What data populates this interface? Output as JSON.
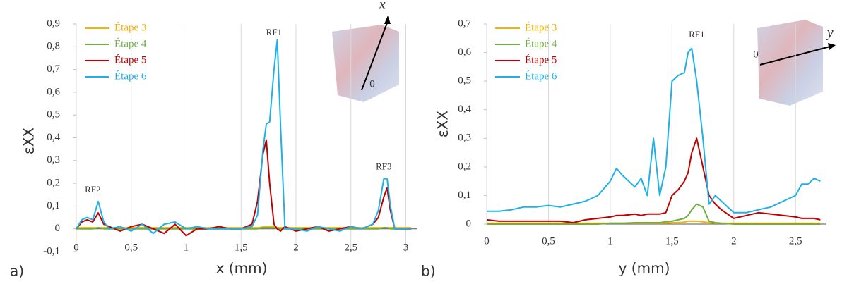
{
  "chart_data": [
    {
      "type": "line",
      "panel_label": "a)",
      "x_label": "x (mm)",
      "y_label": "εXX",
      "x": [
        0,
        0.05,
        0.1,
        0.15,
        0.2,
        0.25,
        0.3,
        0.4,
        0.5,
        0.6,
        0.7,
        0.8,
        0.9,
        1.0,
        1.1,
        1.2,
        1.3,
        1.4,
        1.5,
        1.6,
        1.65,
        1.7,
        1.73,
        1.76,
        1.8,
        1.83,
        1.86,
        1.9,
        2.0,
        2.1,
        2.2,
        2.3,
        2.4,
        2.5,
        2.6,
        2.7,
        2.75,
        2.8,
        2.83,
        2.86,
        2.9,
        3.0,
        3.05
      ],
      "series": [
        {
          "name": "Étape 3",
          "color": "#f5b400",
          "values": [
            0.005,
            0.005,
            0.005,
            0.005,
            0.005,
            0.005,
            0.005,
            0.005,
            0.005,
            0.005,
            0.005,
            0.005,
            0.005,
            0.005,
            0.005,
            0.005,
            0.005,
            0.005,
            0.005,
            0.005,
            0.005,
            0.008,
            0.01,
            0.01,
            0.01,
            0.005,
            0.005,
            0.005,
            0.005,
            0.005,
            0.005,
            0.005,
            0.005,
            0.005,
            0.005,
            0.005,
            0.005,
            0.005,
            0.005,
            0.005,
            0.005,
            0.005,
            0.005
          ]
        },
        {
          "name": "Étape 4",
          "color": "#70ad47",
          "values": [
            0,
            0,
            0,
            0,
            0.005,
            0,
            0,
            0,
            0,
            0,
            0,
            0,
            0,
            0,
            0,
            0,
            0,
            0,
            0,
            0,
            0,
            0.005,
            0.005,
            0.005,
            0.005,
            0,
            0,
            0,
            0,
            0,
            0,
            0,
            0,
            0,
            0,
            0,
            0,
            0.005,
            0.005,
            0,
            0,
            0,
            0
          ]
        },
        {
          "name": "Étape 5",
          "color": "#c00000",
          "values": [
            0,
            0.03,
            0.04,
            0.03,
            0.07,
            0.02,
            0.01,
            -0.01,
            0.01,
            0.02,
            0,
            -0.02,
            0.02,
            -0.03,
            0,
            0,
            0.01,
            0,
            0,
            0.02,
            0.12,
            0.33,
            0.39,
            0.2,
            0.02,
            0,
            -0.01,
            0.01,
            -0.01,
            0,
            0.01,
            -0.01,
            0,
            0.01,
            0,
            0.02,
            0.05,
            0.14,
            0.18,
            0.08,
            0,
            0,
            0
          ]
        },
        {
          "name": "Étape 6",
          "color": "#1fb0e8",
          "values": [
            0,
            0.04,
            0.05,
            0.04,
            0.12,
            0.03,
            0,
            0.01,
            -0.01,
            0.02,
            -0.02,
            0.02,
            0.03,
            0,
            0.01,
            0,
            0,
            0,
            0,
            0.01,
            0.06,
            0.35,
            0.46,
            0.47,
            0.7,
            0.83,
            0.45,
            0,
            0,
            -0.01,
            0.01,
            0,
            -0.01,
            0.01,
            0,
            0.02,
            0.08,
            0.22,
            0.22,
            0.1,
            0,
            0,
            0
          ]
        }
      ],
      "xlim": [
        0,
        3.1
      ],
      "ylim": [
        -0.1,
        0.9
      ],
      "xticks": [
        0,
        {
          "value": 0.5,
          "label": "0,5"
        },
        1,
        {
          "value": 1.5,
          "label": "1,5"
        },
        2,
        {
          "value": 2.5,
          "label": "2,5"
        },
        3
      ],
      "yticks": [
        {
          "value": -0.1,
          "label": "-0,1"
        },
        0,
        {
          "value": 0.1,
          "label": "0,1"
        },
        {
          "value": 0.2,
          "label": "0,2"
        },
        {
          "value": 0.3,
          "label": "0,3"
        },
        {
          "value": 0.4,
          "label": "0,4"
        },
        {
          "value": 0.5,
          "label": "0,5"
        },
        {
          "value": 0.6,
          "label": "0,6"
        },
        {
          "value": 0.7,
          "label": "0,7"
        },
        {
          "value": 0.8,
          "label": "0,8"
        },
        {
          "value": 0.9,
          "label": "0,9"
        }
      ],
      "grid": true,
      "legend": "upper left",
      "annotations": [
        {
          "text": "RF1",
          "x": 1.8,
          "y": 0.86
        },
        {
          "text": "RF2",
          "x": 0.15,
          "y": 0.17
        },
        {
          "text": "RF3",
          "x": 2.8,
          "y": 0.27
        }
      ],
      "inset_axis_label": "x⃗",
      "inset_origin_label": "0"
    },
    {
      "type": "line",
      "panel_label": "b)",
      "x_label": "y (mm)",
      "y_label": "εXX",
      "x": [
        0,
        0.1,
        0.2,
        0.3,
        0.4,
        0.5,
        0.6,
        0.7,
        0.8,
        0.9,
        1.0,
        1.05,
        1.1,
        1.2,
        1.25,
        1.3,
        1.35,
        1.4,
        1.45,
        1.5,
        1.55,
        1.6,
        1.63,
        1.66,
        1.7,
        1.75,
        1.8,
        1.85,
        1.9,
        2.0,
        2.1,
        2.2,
        2.3,
        2.4,
        2.5,
        2.55,
        2.6,
        2.65,
        2.7
      ],
      "series": [
        {
          "name": "Étape 3",
          "color": "#f5b400",
          "values": [
            0.003,
            0.003,
            0.003,
            0.003,
            0.003,
            0.003,
            0.003,
            0.003,
            0.003,
            0.003,
            0.003,
            0.003,
            0.003,
            0.003,
            0.003,
            0.003,
            0.003,
            0.003,
            0.003,
            0.005,
            0.005,
            0.007,
            0.01,
            0.01,
            0.01,
            0.008,
            0.005,
            0.003,
            0.003,
            0.003,
            0.003,
            0.003,
            0.003,
            0.003,
            0.003,
            0.003,
            0.003,
            0.003,
            0.003
          ]
        },
        {
          "name": "Étape 4",
          "color": "#70ad47",
          "values": [
            0,
            0,
            0,
            0,
            0,
            0,
            0,
            0,
            0,
            0,
            0.003,
            0.003,
            0.003,
            0.005,
            0.005,
            0.005,
            0.005,
            0.005,
            0.008,
            0.01,
            0.015,
            0.02,
            0.03,
            0.05,
            0.07,
            0.06,
            0.01,
            0.005,
            0.003,
            0,
            0,
            0,
            0,
            0,
            0,
            0,
            0,
            0,
            0
          ]
        },
        {
          "name": "Étape 5",
          "color": "#c00000",
          "values": [
            0.015,
            0.01,
            0.01,
            0.01,
            0.01,
            0.01,
            0.01,
            0.005,
            0.015,
            0.02,
            0.025,
            0.03,
            0.03,
            0.035,
            0.03,
            0.035,
            0.035,
            0.035,
            0.04,
            0.1,
            0.12,
            0.15,
            0.18,
            0.25,
            0.3,
            0.2,
            0.1,
            0.07,
            0.05,
            0.02,
            0.03,
            0.04,
            0.035,
            0.03,
            0.025,
            0.02,
            0.02,
            0.02,
            0.015
          ]
        },
        {
          "name": "Étape 6",
          "color": "#1fb0e8",
          "values": [
            0.045,
            0.045,
            0.05,
            0.06,
            0.06,
            0.065,
            0.06,
            0.07,
            0.08,
            0.1,
            0.15,
            0.195,
            0.17,
            0.13,
            0.16,
            0.1,
            0.3,
            0.1,
            0.2,
            0.5,
            0.52,
            0.53,
            0.6,
            0.615,
            0.5,
            0.3,
            0.07,
            0.1,
            0.08,
            0.04,
            0.04,
            0.05,
            0.06,
            0.08,
            0.1,
            0.14,
            0.14,
            0.16,
            0.15
          ]
        }
      ],
      "xlim": [
        0,
        2.75
      ],
      "ylim": [
        0,
        0.7
      ],
      "xticks": [
        0,
        {
          "value": 0.5,
          "label": "0,5"
        },
        1,
        {
          "value": 1.5,
          "label": "1,5"
        },
        2,
        {
          "value": 2.5,
          "label": "2,5"
        }
      ],
      "yticks": [
        0,
        {
          "value": 0.1,
          "label": "0,1"
        },
        {
          "value": 0.2,
          "label": "0,2"
        },
        {
          "value": 0.3,
          "label": "0,3"
        },
        {
          "value": 0.4,
          "label": "0,4"
        },
        {
          "value": 0.5,
          "label": "0,5"
        },
        {
          "value": 0.6,
          "label": "0,6"
        },
        {
          "value": 0.7,
          "label": "0,7"
        }
      ],
      "grid": true,
      "legend": "upper left",
      "annotations": [
        {
          "text": "RF1",
          "x": 1.7,
          "y": 0.66
        }
      ],
      "inset_axis_label": "y⃗",
      "inset_origin_label": "0"
    }
  ]
}
